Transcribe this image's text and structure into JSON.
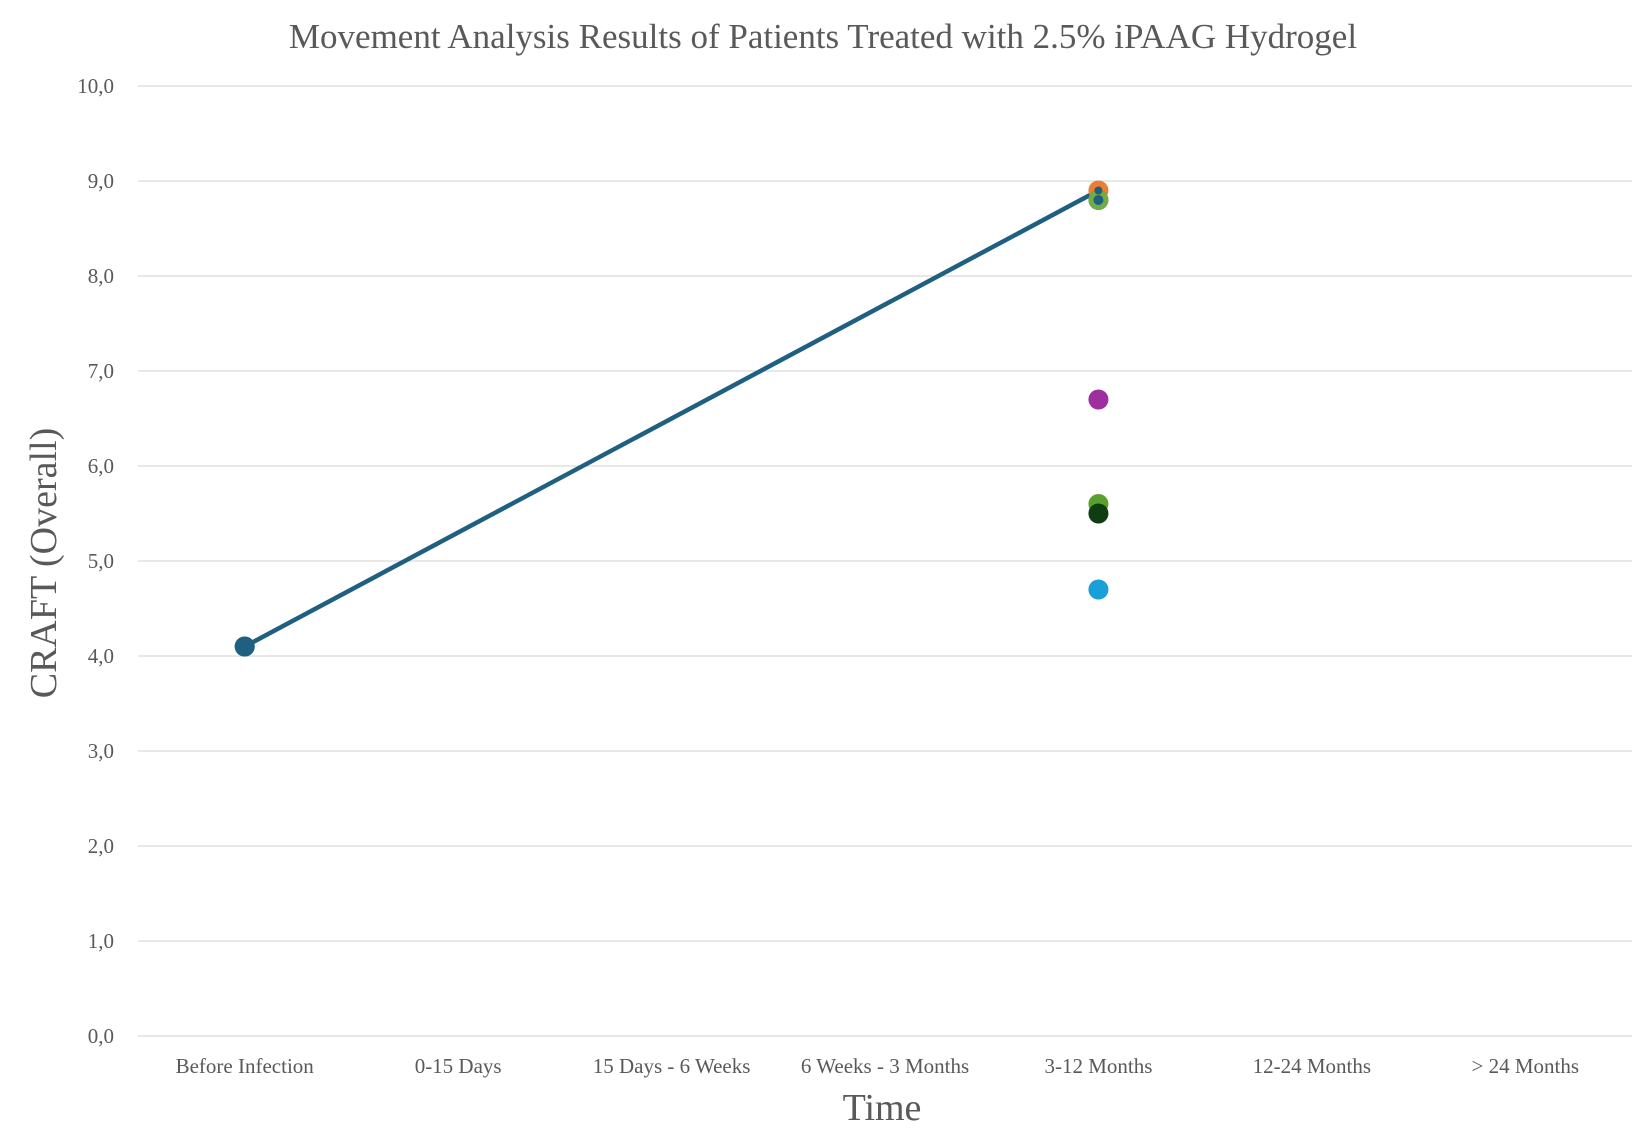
{
  "chart_data": {
    "type": "line",
    "title": "Movement Analysis Results of Patients Treated with 2.5% iPAAG Hydrogel",
    "xlabel": "Time",
    "ylabel": "CRAFT (Overall)",
    "categories": [
      "Before Infection",
      "0-15 Days",
      "15 Days - 6 Weeks",
      "6 Weeks - 3 Months",
      "3-12 Months",
      "12-24 Months",
      "> 24 Months"
    ],
    "ylim": [
      0,
      10
    ],
    "yticks": [
      "0,0",
      "1,0",
      "2,0",
      "3,0",
      "4,0",
      "5,0",
      "6,0",
      "7,0",
      "8,0",
      "9,0",
      "10,0"
    ],
    "grid": true,
    "legend": "none",
    "series": [
      {
        "color": "#1f5f7f",
        "line": true,
        "points": [
          {
            "x": "Before Infection",
            "y": 4.1
          },
          {
            "x": "3-12 Months",
            "y": 8.9
          }
        ]
      },
      {
        "color": "#ed7d31",
        "line": false,
        "points": [
          {
            "x": "3-12 Months",
            "y": 8.9
          }
        ]
      },
      {
        "color": "#7f6000",
        "line": false,
        "points": [
          {
            "x": "3-12 Months",
            "y": 8.8
          }
        ]
      },
      {
        "color": "#70ad47",
        "line": false,
        "points": [
          {
            "x": "3-12 Months",
            "y": 8.8
          }
        ]
      },
      {
        "color": "#1f5f7f",
        "line": false,
        "points": [
          {
            "x": "3-12 Months",
            "y": 8.8
          }
        ]
      },
      {
        "color": "#9e2f9e",
        "line": false,
        "points": [
          {
            "x": "3-12 Months",
            "y": 6.7
          }
        ]
      },
      {
        "color": "#5aa02c",
        "line": false,
        "points": [
          {
            "x": "3-12 Months",
            "y": 5.6
          }
        ]
      },
      {
        "color": "#0f3d12",
        "line": false,
        "points": [
          {
            "x": "3-12 Months",
            "y": 5.5
          }
        ]
      },
      {
        "color": "#1aa0d8",
        "line": false,
        "points": [
          {
            "x": "3-12 Months",
            "y": 4.7
          }
        ]
      }
    ]
  }
}
